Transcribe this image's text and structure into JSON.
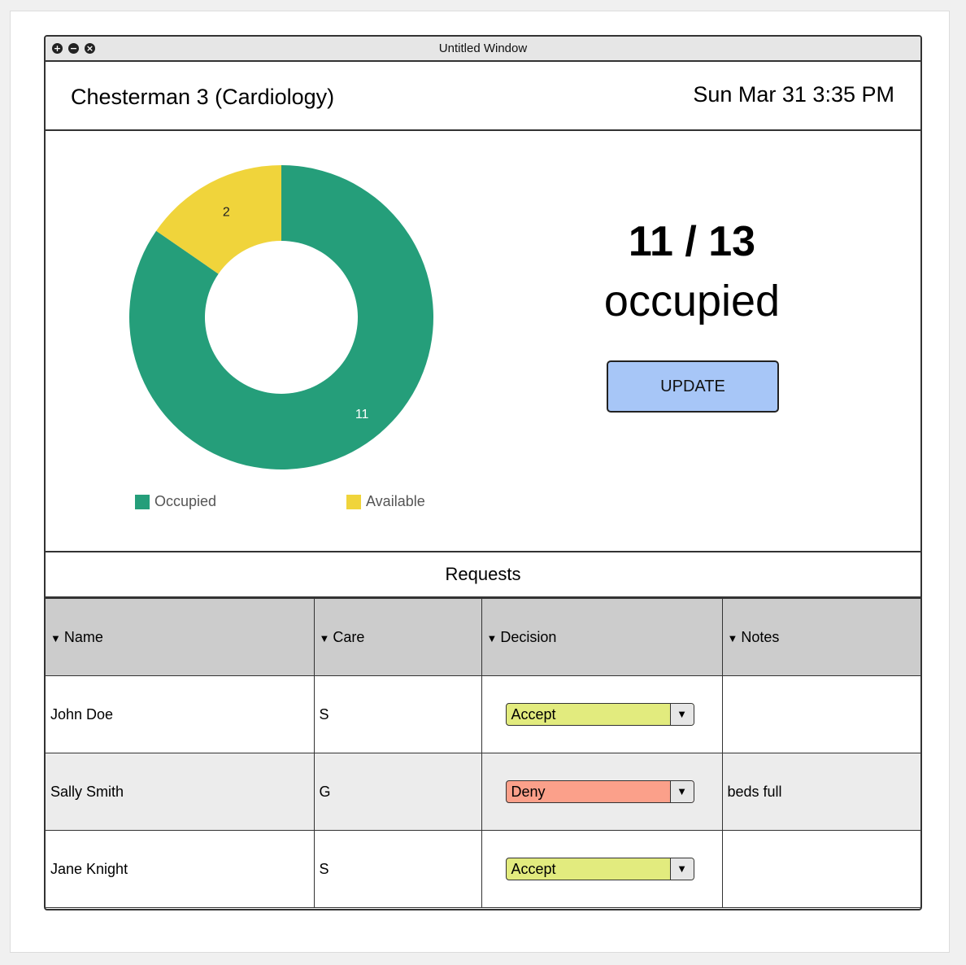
{
  "window": {
    "title": "Untitled Window"
  },
  "header": {
    "ward": "Chesterman 3 (Cardiology)",
    "datetime": "Sun Mar 31 3:35 PM"
  },
  "chart_data": {
    "type": "pie",
    "style": "donut",
    "categories": [
      "Occupied",
      "Available"
    ],
    "values": [
      11,
      2
    ],
    "data_labels": [
      "11",
      "2"
    ],
    "colors": [
      "#259e7a",
      "#f0d43b"
    ],
    "legend_position": "bottom"
  },
  "summary": {
    "count": "11 / 13",
    "label": "occupied",
    "update_label": "UPDATE"
  },
  "requests": {
    "title": "Requests",
    "columns": [
      "Name",
      "Care",
      "Decision",
      "Notes"
    ],
    "rows": [
      {
        "name": "John Doe",
        "care": "S",
        "decision": "Accept",
        "decision_color": "#e2eb7e",
        "notes": ""
      },
      {
        "name": "Sally Smith",
        "care": "G",
        "decision": "Deny",
        "decision_color": "#fba08a",
        "notes": "beds full"
      },
      {
        "name": "Jane Knight",
        "care": "S",
        "decision": "Accept",
        "decision_color": "#e2eb7e",
        "notes": ""
      }
    ]
  },
  "icons": {
    "caret": "▼",
    "dropdown_arrow": "▼",
    "window_buttons": [
      "+",
      "−",
      "×"
    ]
  }
}
